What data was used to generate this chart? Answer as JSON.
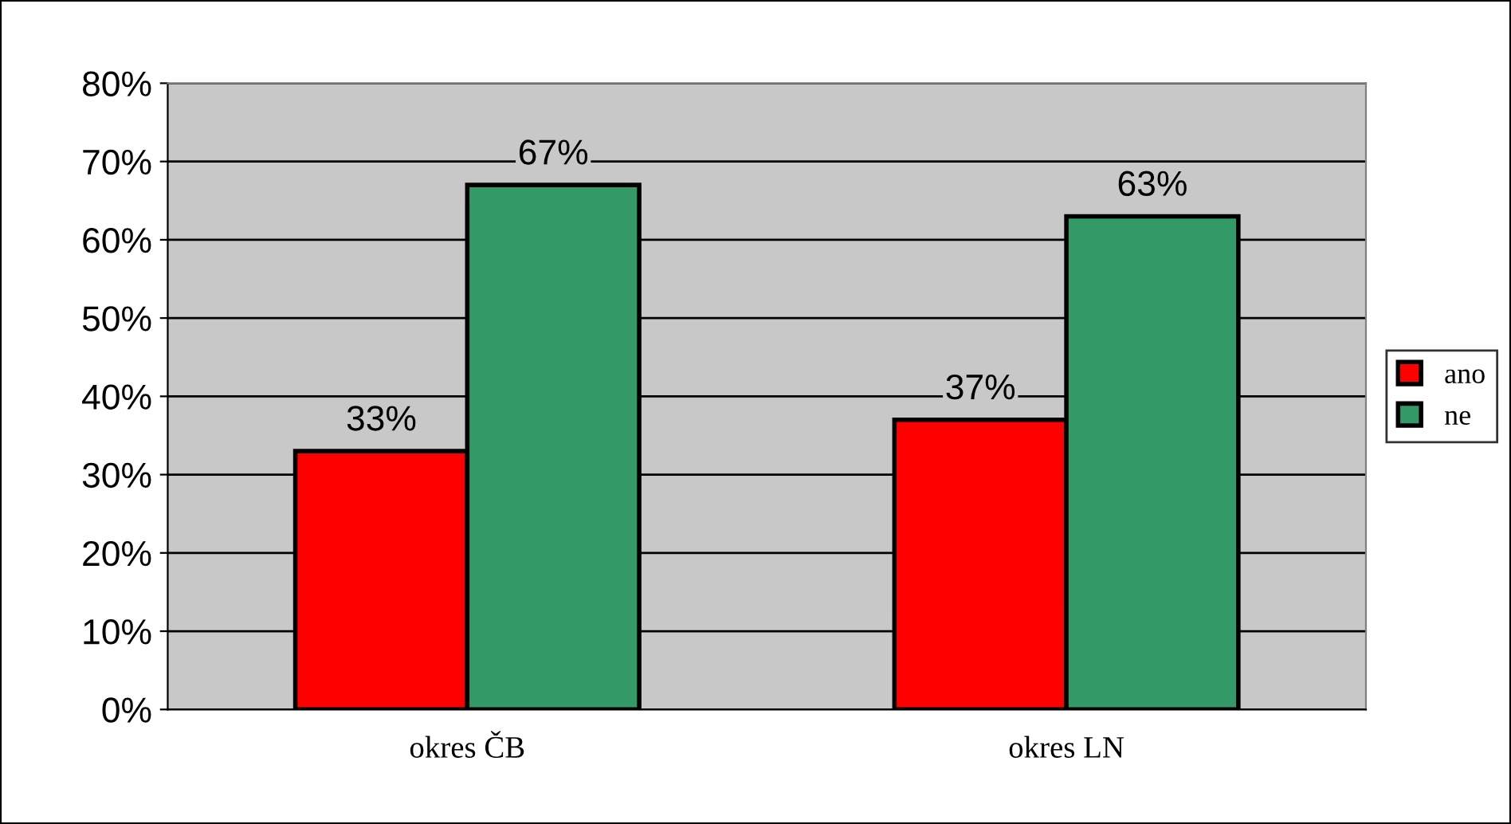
{
  "chart_data": {
    "type": "bar",
    "categories": [
      "okres ČB",
      "okres LN"
    ],
    "series": [
      {
        "name": "ano",
        "color": "#ff0000",
        "values": [
          33,
          37
        ],
        "value_labels": [
          "33%",
          "37%"
        ]
      },
      {
        "name": "ne",
        "color": "#339966",
        "values": [
          67,
          63
        ],
        "value_labels": [
          "67%",
          "63%"
        ]
      }
    ],
    "ylim": [
      0,
      80
    ],
    "yticks": [
      {
        "value": 0,
        "label": "0%"
      },
      {
        "value": 10,
        "label": "10%"
      },
      {
        "value": 20,
        "label": "20%"
      },
      {
        "value": 30,
        "label": "30%"
      },
      {
        "value": 40,
        "label": "40%"
      },
      {
        "value": 50,
        "label": "50%"
      },
      {
        "value": 60,
        "label": "60%"
      },
      {
        "value": 70,
        "label": "70%"
      },
      {
        "value": 80,
        "label": "80%"
      }
    ],
    "grid": "y",
    "legend": "right"
  }
}
